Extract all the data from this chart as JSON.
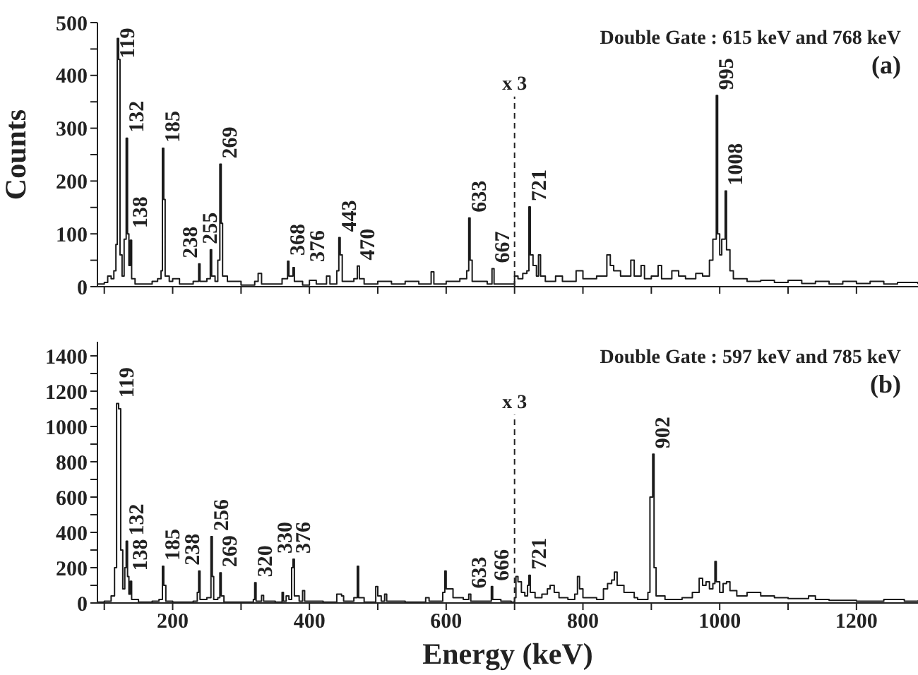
{
  "chart_data": [
    {
      "type": "step",
      "title": "Double Gate : 615 keV and 768 keV",
      "ylabel": "Counts",
      "tick_labels": "y",
      "xlim": [
        90,
        1290
      ],
      "ylim": [
        0,
        500
      ],
      "xticks": [
        {
          "value": 100,
          "label": null
        },
        200,
        {
          "value": 300,
          "label": null
        },
        400,
        {
          "value": 500,
          "label": null
        },
        600,
        {
          "value": 700,
          "label": null
        },
        800,
        {
          "value": 900,
          "label": null
        },
        1000,
        {
          "value": 1100,
          "label": null
        },
        1200
      ],
      "yticks": [
        0,
        {
          "value": 50,
          "label": null
        },
        100,
        {
          "value": 150,
          "label": null
        },
        200,
        {
          "value": 250,
          "label": null
        },
        300,
        {
          "value": 350,
          "label": null
        },
        400,
        {
          "value": 450,
          "label": null
        },
        500
      ],
      "x": [
        90,
        100,
        105,
        110,
        114,
        117,
        119,
        121,
        123,
        126,
        129,
        132,
        134,
        136,
        138,
        140,
        145,
        160,
        170,
        178,
        183,
        185,
        187,
        189,
        195,
        200,
        210,
        230,
        238,
        240,
        250,
        255,
        257,
        262,
        266,
        269,
        271,
        273,
        280,
        300,
        320,
        325,
        330,
        350,
        360,
        368,
        370,
        376,
        378,
        390,
        400,
        410,
        425,
        430,
        440,
        443,
        445,
        448,
        465,
        470,
        473,
        480,
        500,
        520,
        540,
        560,
        578,
        582,
        600,
        620,
        630,
        633,
        635,
        638,
        660,
        667,
        670,
        690,
        700,
        705,
        712,
        718,
        721,
        723,
        727,
        732,
        735,
        738,
        745,
        760,
        770,
        790,
        800,
        820,
        835,
        840,
        845,
        855,
        870,
        875,
        885,
        890,
        900,
        910,
        915,
        930,
        940,
        950,
        965,
        975,
        985,
        990,
        995,
        997,
        1000,
        1003,
        1008,
        1010,
        1015,
        1020,
        1040,
        1060,
        1080,
        1100,
        1120,
        1140,
        1160,
        1180,
        1200,
        1220,
        1240,
        1260,
        1290
      ],
      "series": [
        {
          "color": "#1a1a1a",
          "values": [
            5,
            8,
            20,
            15,
            30,
            80,
            470,
            430,
            60,
            20,
            90,
            281,
            100,
            40,
            88,
            15,
            5,
            5,
            10,
            15,
            30,
            262,
            165,
            20,
            10,
            15,
            5,
            10,
            43,
            10,
            15,
            70,
            20,
            10,
            50,
            232,
            120,
            20,
            10,
            3,
            10,
            25,
            5,
            5,
            15,
            48,
            20,
            36,
            10,
            3,
            12,
            5,
            20,
            5,
            30,
            93,
            60,
            10,
            15,
            39,
            15,
            5,
            10,
            5,
            10,
            5,
            28,
            5,
            10,
            15,
            30,
            130,
            50,
            10,
            5,
            34,
            5,
            5,
            20,
            15,
            25,
            30,
            151,
            60,
            40,
            20,
            60,
            20,
            10,
            20,
            10,
            30,
            15,
            20,
            60,
            40,
            30,
            20,
            50,
            20,
            40,
            15,
            20,
            40,
            15,
            30,
            20,
            15,
            25,
            20,
            50,
            90,
            362,
            100,
            60,
            90,
            181,
            70,
            30,
            15,
            10,
            12,
            8,
            12,
            6,
            10,
            5,
            10,
            6,
            10,
            5,
            8,
            5
          ]
        }
      ],
      "ref_lines": [
        {
          "axis": "x",
          "value": 700,
          "label": "x 3",
          "line_style": "dashed"
        }
      ],
      "annotations": [
        "(a)",
        {
          "text": "119",
          "x": 119,
          "y": 470
        },
        {
          "text": "132",
          "x": 132,
          "y": 281
        },
        {
          "text": "138",
          "x": 138,
          "y": 88
        },
        {
          "text": "185",
          "x": 185,
          "y": 262
        },
        {
          "text": "238",
          "x": 238,
          "y": 43
        },
        {
          "text": "255",
          "x": 255,
          "y": 70
        },
        {
          "text": "269",
          "x": 269,
          "y": 232
        },
        {
          "text": "368",
          "x": 368,
          "y": 48
        },
        {
          "text": "376",
          "x": 376,
          "y": 36
        },
        {
          "text": "443",
          "x": 443,
          "y": 93
        },
        {
          "text": "470",
          "x": 470,
          "y": 39
        },
        {
          "text": "633",
          "x": 633,
          "y": 130
        },
        {
          "text": "667",
          "x": 667,
          "y": 34
        },
        {
          "text": "721",
          "x": 721,
          "y": 151
        },
        {
          "text": "995",
          "x": 995,
          "y": 362
        },
        {
          "text": "1008",
          "x": 1008,
          "y": 181
        }
      ]
    },
    {
      "type": "step",
      "title": "Double Gate : 597 keV and 785 keV",
      "xlabel": "Energy (keV)",
      "xlim": [
        90,
        1290
      ],
      "ylim": [
        0,
        1480
      ],
      "xticks": [
        {
          "value": 100,
          "label": null
        },
        200,
        {
          "value": 300,
          "label": null
        },
        400,
        {
          "value": 500,
          "label": null
        },
        600,
        {
          "value": 700,
          "label": null
        },
        800,
        {
          "value": 900,
          "label": null
        },
        1000,
        {
          "value": 1100,
          "label": null
        },
        1200
      ],
      "yticks": [
        0,
        {
          "value": 100,
          "label": null
        },
        200,
        {
          "value": 300,
          "label": null
        },
        400,
        {
          "value": 500,
          "label": null
        },
        600,
        {
          "value": 700,
          "label": null
        },
        800,
        {
          "value": 900,
          "label": null
        },
        1000,
        {
          "value": 1100,
          "label": null
        },
        1200,
        {
          "value": 1300,
          "label": null
        },
        1400
      ],
      "x": [
        90,
        100,
        110,
        115,
        118,
        121,
        124,
        127,
        130,
        132,
        134,
        136,
        138,
        140,
        150,
        170,
        180,
        185,
        187,
        190,
        200,
        230,
        236,
        238,
        240,
        250,
        256,
        258,
        260,
        266,
        269,
        271,
        275,
        300,
        318,
        320,
        322,
        330,
        333,
        350,
        360,
        362,
        366,
        370,
        374,
        376,
        378,
        385,
        390,
        393,
        420,
        440,
        447,
        450,
        465,
        470,
        472,
        480,
        497,
        500,
        505,
        510,
        513,
        540,
        570,
        575,
        595,
        598,
        600,
        610,
        625,
        633,
        636,
        660,
        666,
        668,
        680,
        695,
        700,
        702,
        705,
        710,
        715,
        719,
        721,
        723,
        730,
        740,
        748,
        752,
        758,
        765,
        778,
        788,
        792,
        795,
        800,
        820,
        830,
        836,
        842,
        846,
        850,
        860,
        875,
        880,
        895,
        898,
        902,
        904,
        907,
        920,
        945,
        960,
        970,
        975,
        980,
        985,
        990,
        993,
        995,
        1000,
        1005,
        1010,
        1015,
        1025,
        1040,
        1060,
        1080,
        1100,
        1130,
        1140,
        1160,
        1200,
        1240,
        1270,
        1290
      ],
      "series": [
        {
          "color": "#1a1a1a",
          "values": [
            5,
            10,
            40,
            200,
            1130,
            1100,
            300,
            80,
            200,
            350,
            150,
            50,
            123,
            20,
            5,
            10,
            20,
            208,
            100,
            10,
            5,
            10,
            60,
            181,
            20,
            30,
            376,
            150,
            20,
            30,
            171,
            40,
            5,
            5,
            20,
            115,
            10,
            43,
            10,
            5,
            60,
            10,
            40,
            20,
            200,
            248,
            40,
            10,
            70,
            10,
            5,
            50,
            40,
            10,
            30,
            208,
            30,
            5,
            93,
            40,
            10,
            50,
            10,
            5,
            30,
            10,
            60,
            181,
            80,
            30,
            20,
            50,
            10,
            10,
            93,
            20,
            10,
            5,
            30,
            150,
            120,
            60,
            40,
            100,
            157,
            60,
            30,
            50,
            80,
            100,
            60,
            30,
            20,
            50,
            150,
            80,
            30,
            20,
            80,
            110,
            130,
            175,
            100,
            60,
            30,
            20,
            60,
            600,
            843,
            200,
            40,
            20,
            30,
            60,
            140,
            100,
            120,
            80,
            110,
            235,
            120,
            60,
            110,
            120,
            70,
            40,
            60,
            40,
            30,
            25,
            40,
            20,
            15,
            10,
            20,
            10,
            15
          ]
        }
      ],
      "ref_lines": [
        {
          "axis": "x",
          "value": 700,
          "label": "x 3",
          "line_style": "dashed"
        }
      ],
      "annotations": [
        "(b)",
        {
          "text": "119",
          "x": 118,
          "y": 1130
        },
        {
          "text": "132",
          "x": 132,
          "y": 350
        },
        {
          "text": "138",
          "x": 138,
          "y": 123
        },
        {
          "text": "185",
          "x": 185,
          "y": 208
        },
        {
          "text": "238",
          "x": 238,
          "y": 181
        },
        {
          "text": "256",
          "x": 256,
          "y": 376
        },
        {
          "text": "269",
          "x": 269,
          "y": 171
        },
        {
          "text": "320",
          "x": 320,
          "y": 115
        },
        {
          "text": "330",
          "x": 330,
          "y": 43
        },
        {
          "text": "376",
          "x": 376,
          "y": 248
        },
        {
          "text": "633",
          "x": 633,
          "y": 50
        },
        {
          "text": "666",
          "x": 666,
          "y": 93
        },
        {
          "text": "721",
          "x": 721,
          "y": 157
        },
        {
          "text": "902",
          "x": 902,
          "y": 843
        }
      ]
    }
  ]
}
